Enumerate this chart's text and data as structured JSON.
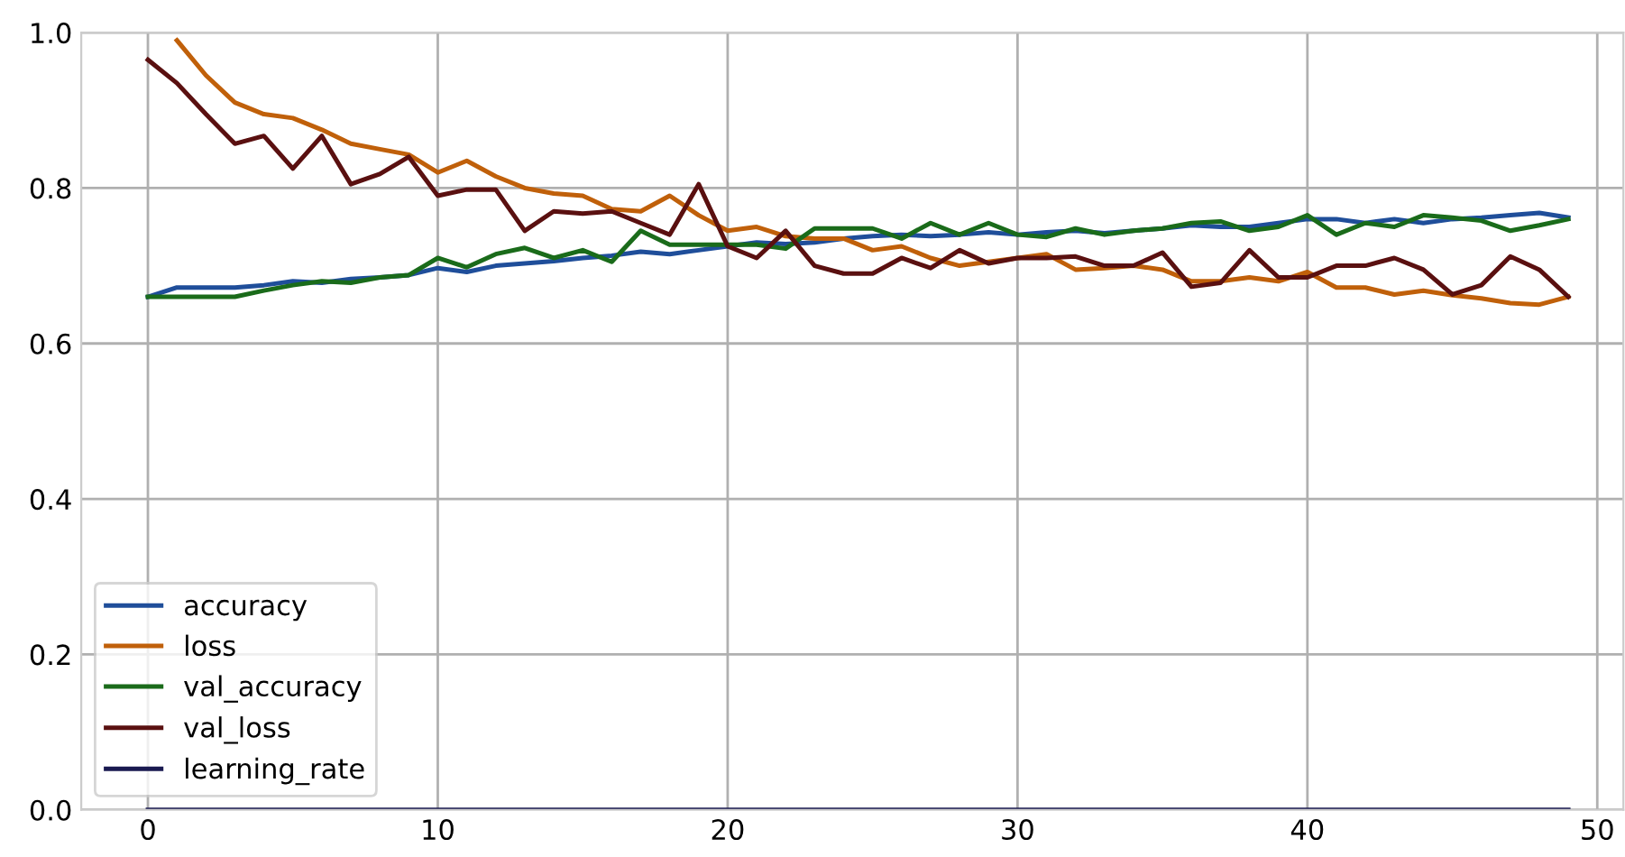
{
  "chart_data": {
    "type": "line",
    "x": [
      0,
      1,
      2,
      3,
      4,
      5,
      6,
      7,
      8,
      9,
      10,
      11,
      12,
      13,
      14,
      15,
      16,
      17,
      18,
      19,
      20,
      21,
      22,
      23,
      24,
      25,
      26,
      27,
      28,
      29,
      30,
      31,
      32,
      33,
      34,
      35,
      36,
      37,
      38,
      39,
      40,
      41,
      42,
      43,
      44,
      45,
      46,
      47,
      48,
      49
    ],
    "series": [
      {
        "name": "accuracy",
        "color": "#1f4e9a",
        "values": [
          0.66,
          0.672,
          0.672,
          0.672,
          0.675,
          0.68,
          0.678,
          0.683,
          0.685,
          0.688,
          0.697,
          0.692,
          0.7,
          0.703,
          0.706,
          0.71,
          0.713,
          0.718,
          0.715,
          0.72,
          0.725,
          0.73,
          0.728,
          0.73,
          0.735,
          0.738,
          0.74,
          0.738,
          0.74,
          0.743,
          0.74,
          0.743,
          0.745,
          0.742,
          0.745,
          0.748,
          0.752,
          0.75,
          0.75,
          0.755,
          0.76,
          0.76,
          0.755,
          0.76,
          0.755,
          0.76,
          0.762,
          0.765,
          0.768,
          0.762
        ]
      },
      {
        "name": "loss",
        "color": "#c0600a",
        "values": [
          null,
          0.99,
          0.945,
          0.91,
          0.895,
          0.89,
          0.875,
          0.857,
          0.85,
          0.843,
          0.82,
          0.835,
          0.815,
          0.8,
          0.793,
          0.79,
          0.773,
          0.77,
          0.79,
          0.765,
          0.745,
          0.75,
          0.738,
          0.735,
          0.735,
          0.72,
          0.725,
          0.71,
          0.7,
          0.705,
          0.71,
          0.715,
          0.695,
          0.697,
          0.7,
          0.695,
          0.68,
          0.68,
          0.685,
          0.68,
          0.692,
          0.672,
          0.672,
          0.663,
          0.668,
          0.662,
          0.658,
          0.652,
          0.65,
          0.66
        ]
      },
      {
        "name": "val_accuracy",
        "color": "#1a6b1a",
        "values": [
          0.66,
          0.66,
          0.66,
          0.66,
          0.668,
          0.675,
          0.68,
          0.678,
          0.685,
          0.688,
          0.71,
          0.698,
          0.715,
          0.723,
          0.71,
          0.72,
          0.705,
          0.745,
          0.727,
          0.727,
          0.727,
          0.727,
          0.722,
          0.748,
          0.748,
          0.748,
          0.735,
          0.755,
          0.74,
          0.755,
          0.74,
          0.737,
          0.748,
          0.74,
          0.745,
          0.748,
          0.755,
          0.757,
          0.745,
          0.75,
          0.765,
          0.74,
          0.755,
          0.75,
          0.765,
          0.762,
          0.758,
          0.745,
          0.752,
          0.76
        ]
      },
      {
        "name": "val_loss",
        "color": "#5a1010",
        "values": [
          0.965,
          0.935,
          0.895,
          0.857,
          0.867,
          0.825,
          0.867,
          0.805,
          0.818,
          0.84,
          0.79,
          0.798,
          0.798,
          0.745,
          0.77,
          0.767,
          0.77,
          0.755,
          0.74,
          0.805,
          0.725,
          0.71,
          0.745,
          0.7,
          0.69,
          0.69,
          0.71,
          0.697,
          0.72,
          0.703,
          0.71,
          0.71,
          0.712,
          0.7,
          0.7,
          0.717,
          0.673,
          0.678,
          0.72,
          0.685,
          0.685,
          0.7,
          0.7,
          0.71,
          0.695,
          0.663,
          0.675,
          0.712,
          0.695,
          0.66
        ]
      },
      {
        "name": "learning_rate",
        "color": "#1a1a50",
        "values": [
          0,
          0,
          0,
          0,
          0,
          0,
          0,
          0,
          0,
          0,
          0,
          0,
          0,
          0,
          0,
          0,
          0,
          0,
          0,
          0,
          0,
          0,
          0,
          0,
          0,
          0,
          0,
          0,
          0,
          0,
          0,
          0,
          0,
          0,
          0,
          0,
          0,
          0,
          0,
          0,
          0,
          0,
          0,
          0,
          0,
          0,
          0,
          0,
          0,
          0
        ]
      }
    ],
    "xlim": [
      -2.3,
      50.9
    ],
    "ylim": [
      0,
      1
    ],
    "xticks": [
      0,
      10,
      20,
      30,
      40,
      50
    ],
    "yticks": [
      {
        "value": 0,
        "label": "0.0"
      },
      {
        "value": 0.2,
        "label": "0.2"
      },
      {
        "value": 0.4,
        "label": "0.4"
      },
      {
        "value": 0.6,
        "label": "0.6"
      },
      {
        "value": 0.8,
        "label": "0.8"
      },
      {
        "value": 1,
        "label": "1.0"
      }
    ],
    "grid": true,
    "legend": "bottom left"
  }
}
